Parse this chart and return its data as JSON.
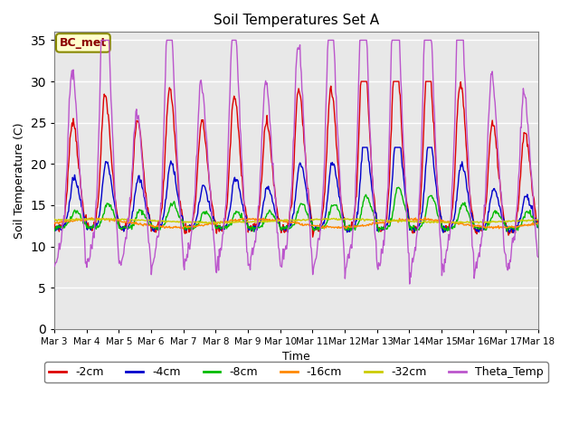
{
  "title": "Soil Temperatures Set A",
  "xlabel": "Time",
  "ylabel": "Soil Temperature (C)",
  "ylim": [
    0,
    36
  ],
  "yticks": [
    0,
    5,
    10,
    15,
    20,
    25,
    30,
    35
  ],
  "x_labels": [
    "Mar 3",
    "Mar 4",
    "Mar 5",
    "Mar 6",
    "Mar 7",
    "Mar 8",
    "Mar 9",
    "Mar 10",
    "Mar 11",
    "Mar 12",
    "Mar 13",
    "Mar 14",
    "Mar 15",
    "Mar 16",
    "Mar 17",
    "Mar 18"
  ],
  "annotation_text": "BC_met",
  "colors": {
    "-2cm": "#dd0000",
    "-4cm": "#0000cc",
    "-8cm": "#00bb00",
    "-16cm": "#ff8800",
    "-32cm": "#cccc00",
    "Theta_Temp": "#bb55cc"
  },
  "background_color": "#e8e8e8",
  "grid_color": "#ffffff",
  "legend_labels": [
    "-2cm",
    "-4cm",
    "-8cm",
    "-16cm",
    "-32cm",
    "Theta_Temp"
  ]
}
